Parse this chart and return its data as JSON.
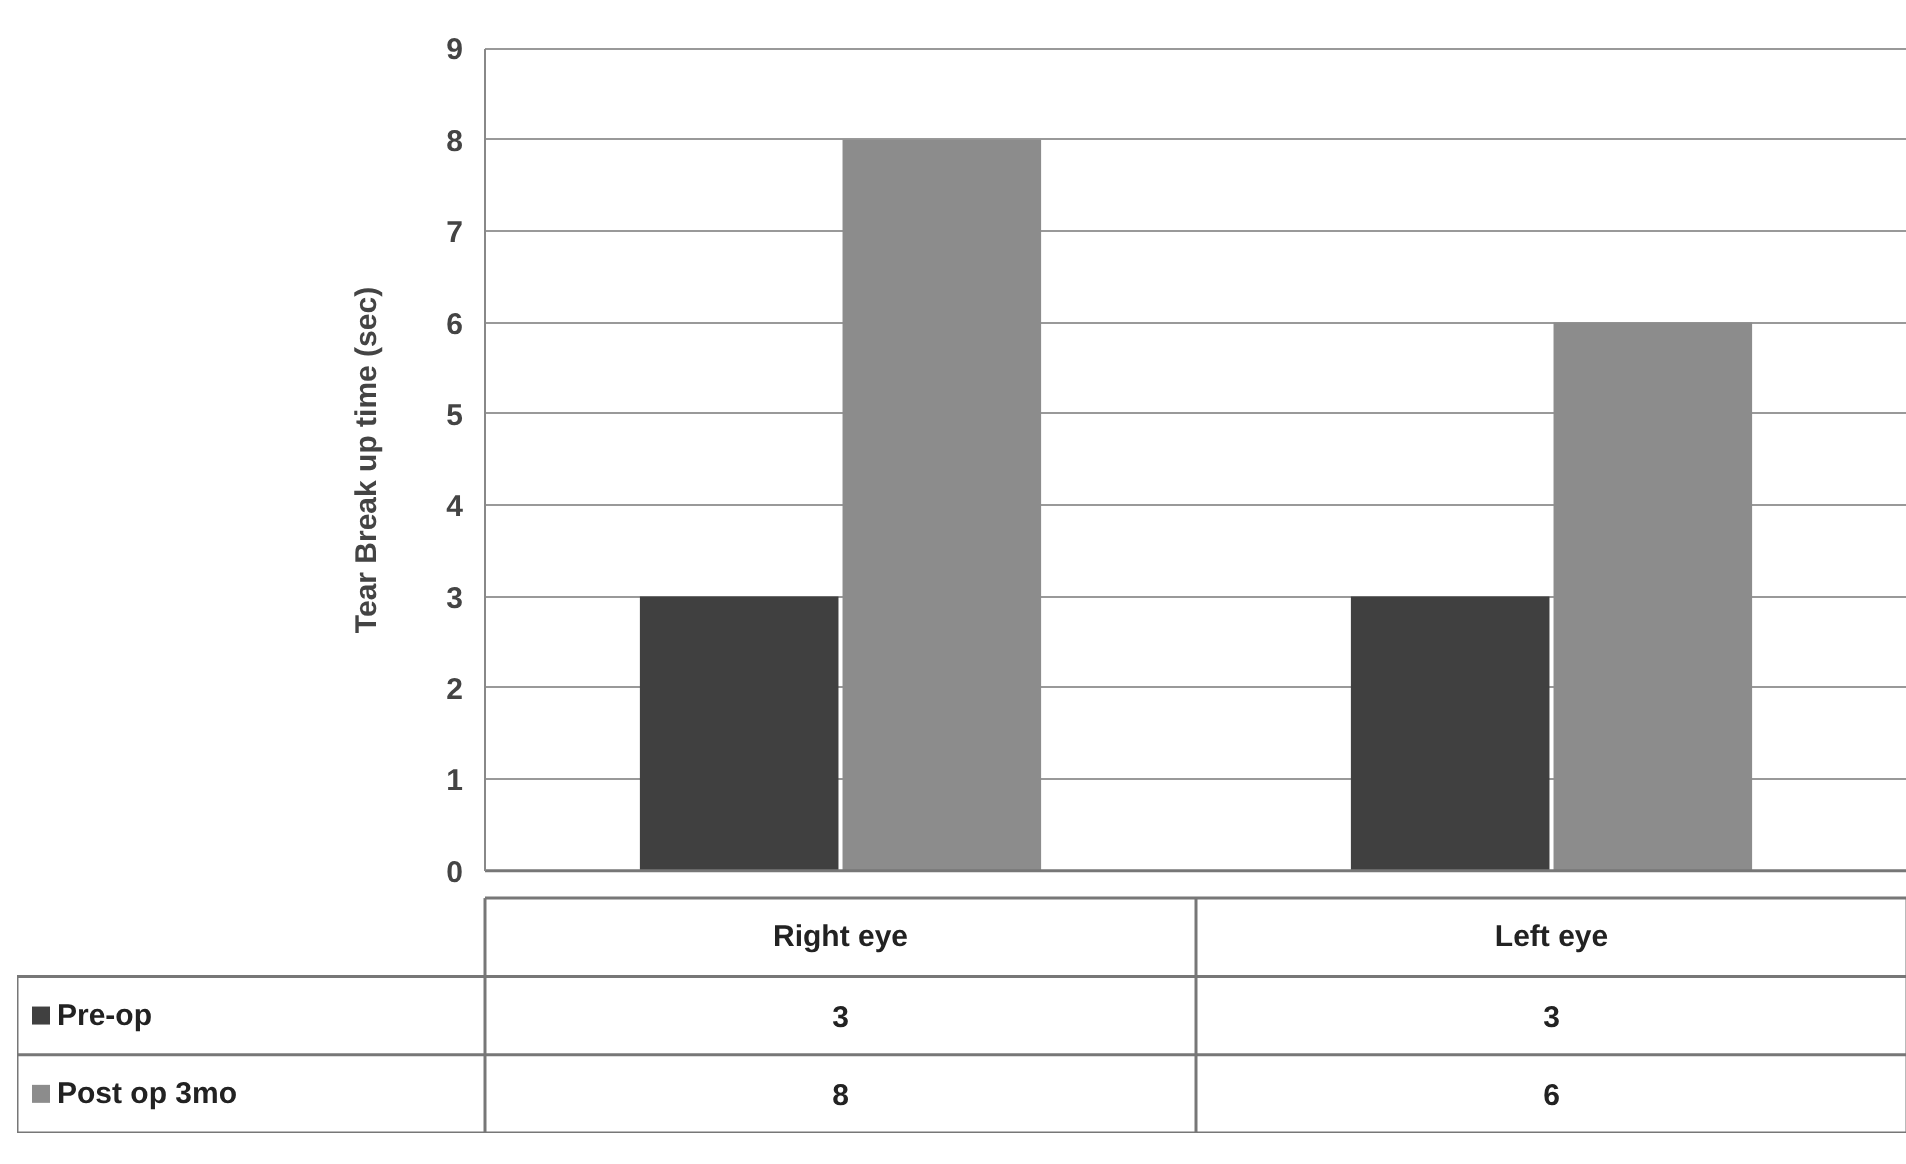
{
  "chart_data": {
    "type": "bar",
    "ylabel": "Tear Break up time (sec)",
    "categories": [
      "Right eye",
      "Left eye"
    ],
    "series": [
      {
        "name": "Pre-op",
        "color": "#404040",
        "values": [
          3,
          3
        ]
      },
      {
        "name": "Post op 3mo",
        "color": "#8c8c8c",
        "values": [
          8,
          6
        ]
      }
    ],
    "ylim": [
      0,
      9
    ],
    "yticks": [
      0,
      1,
      2,
      3,
      4,
      5,
      6,
      7,
      8,
      9
    ],
    "grid": "y",
    "legend": "bottom left",
    "data_labels": true
  }
}
